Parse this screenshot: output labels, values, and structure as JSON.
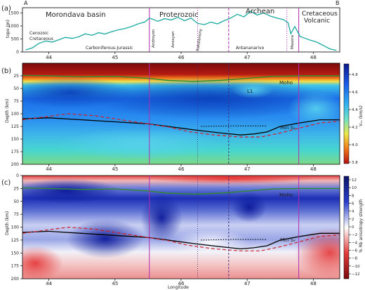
{
  "chart_data": [
    {
      "type": "line",
      "panel_label": "(a)",
      "corner_left": "A",
      "corner_right": "B",
      "ylabel": "topo (m)",
      "xlim": [
        43.6,
        48.4
      ],
      "ylim": [
        0,
        1700
      ],
      "yticks": [
        0,
        500,
        1000,
        1500
      ],
      "xticks": [
        44,
        45,
        46,
        47,
        48
      ],
      "series": [
        {
          "color": "#1aa9a0",
          "x": [
            43.65,
            43.75,
            43.85,
            43.95,
            44.05,
            44.15,
            44.25,
            44.35,
            44.45,
            44.55,
            44.65,
            44.75,
            44.85,
            44.95,
            45.05,
            45.15,
            45.25,
            45.35,
            45.45,
            45.52,
            45.58,
            45.65,
            45.75,
            45.85,
            45.95,
            46.05,
            46.15,
            46.25,
            46.35,
            46.45,
            46.55,
            46.65,
            46.75,
            46.85,
            46.95,
            47.05,
            47.15,
            47.25,
            47.35,
            47.45,
            47.55,
            47.62,
            47.66,
            47.72,
            47.8,
            47.88,
            47.95,
            48.05,
            48.15,
            48.25,
            48.35
          ],
          "y": [
            80,
            160,
            330,
            420,
            380,
            470,
            560,
            520,
            580,
            700,
            640,
            740,
            690,
            780,
            850,
            900,
            980,
            1080,
            1150,
            1300,
            1250,
            1180,
            1280,
            1230,
            1330,
            1200,
            1300,
            1100,
            1050,
            1150,
            1080,
            1200,
            1300,
            1450,
            1350,
            1560,
            1420,
            1500,
            1380,
            1300,
            1240,
            1120,
            700,
            980,
            600,
            520,
            460,
            380,
            250,
            120,
            60
          ]
        }
      ],
      "vlines_solid": [
        45.52,
        47.78
      ],
      "vlines_dashed": [
        46.72
      ],
      "vlines_dotted": [
        46.25,
        47.6
      ],
      "region_labels": [
        {
          "text": "Morondava basin",
          "color": "#b02db0"
        },
        {
          "text": "Proterozoic",
          "color": "#b02db0"
        },
        {
          "text": "Archean",
          "color": "#b02db0"
        },
        {
          "text": "Cretaceous",
          "color": "#b02db0"
        },
        {
          "text": "Volcanic",
          "color": "#b02db0"
        }
      ],
      "annotations": [
        "Cenozoic",
        "Cretaceous",
        "Carboniferous-Jurassic",
        "Androyen",
        "Anosyan",
        "Itakalanony",
        "Antananarivo",
        "Masora"
      ]
    },
    {
      "type": "heatmap",
      "panel_label": "(b)",
      "ylabel": "Depth (km)",
      "xlim": [
        43.6,
        48.4
      ],
      "ylim": [
        200,
        0
      ],
      "yticks": [
        25,
        50,
        75,
        100,
        125,
        150,
        175,
        200
      ],
      "xticks": [
        44,
        45,
        46,
        47,
        48
      ],
      "colorbar": {
        "label": "Vₛᵥ (km/s)",
        "min": 3.8,
        "max": 4.8,
        "ticks": [
          "4.8",
          "4.6",
          "4.4",
          "4.2",
          "4.0",
          "3.8"
        ]
      },
      "labels": [
        "Moho",
        "L1",
        "Min Sᵥ"
      ],
      "moho": {
        "x": [
          43.6,
          44,
          44.5,
          45,
          45.5,
          45.8,
          46.2,
          46.6,
          47,
          47.4,
          47.8,
          48.4
        ],
        "y": [
          24,
          25,
          27,
          26,
          30,
          34,
          36,
          34,
          30,
          26,
          25,
          25
        ]
      },
      "min_sv_solid": {
        "x": [
          43.6,
          44,
          44.5,
          45,
          45.5,
          45.8,
          46.2,
          46.6,
          46.9,
          47.1,
          47.3,
          47.5,
          47.8,
          48.1,
          48.4
        ],
        "y": [
          110,
          108,
          112,
          116,
          120,
          125,
          132,
          138,
          142,
          140,
          136,
          125,
          118,
          112,
          112
        ]
      },
      "min_sv_dotted": {
        "x": [
          46.3,
          46.8,
          47.3
        ],
        "y": [
          125,
          124,
          124
        ]
      },
      "red_dashed": {
        "x": [
          43.6,
          44,
          44.3,
          44.7,
          45,
          45.4,
          45.8,
          46.1,
          46.5,
          46.9,
          47.2,
          47.5,
          47.8,
          48.1,
          48.4
        ],
        "y": [
          112,
          105,
          100,
          104,
          110,
          118,
          126,
          135,
          142,
          146,
          146,
          138,
          128,
          118,
          115
        ]
      }
    },
    {
      "type": "heatmap",
      "panel_label": "(c)",
      "ylabel": "Depth (km)",
      "xlabel": "Longitude",
      "xlim": [
        43.6,
        48.4
      ],
      "ylim": [
        200,
        0
      ],
      "yticks": [
        0,
        25,
        50,
        75,
        100,
        125,
        150,
        175,
        200
      ],
      "xticks": [
        44,
        45,
        46,
        47,
        48
      ],
      "colorbar": {
        "label": "% Rb anisotropy strength",
        "min": -12,
        "max": 12,
        "ticks": [
          "12",
          "10",
          "8",
          "6",
          "4",
          "2",
          "0",
          "−2",
          "−4",
          "−6",
          "−8",
          "−10",
          "−12"
        ]
      },
      "labels": [
        "Moho",
        "Min Sᵥ"
      ],
      "moho": {
        "x": [
          43.6,
          44,
          44.5,
          45,
          45.5,
          45.8,
          46.2,
          46.6,
          47,
          47.4,
          47.8,
          48.4
        ],
        "y": [
          24,
          25,
          27,
          26,
          30,
          34,
          36,
          34,
          30,
          26,
          25,
          25
        ]
      },
      "min_sv_solid": {
        "x": [
          43.6,
          44,
          44.5,
          45,
          45.5,
          45.8,
          46.2,
          46.6,
          46.9,
          47.1,
          47.3,
          47.5,
          47.8,
          48.1,
          48.4
        ],
        "y": [
          110,
          108,
          112,
          116,
          120,
          125,
          132,
          138,
          142,
          140,
          136,
          125,
          118,
          112,
          112
        ]
      },
      "min_sv_dotted": {
        "x": [
          46.3,
          46.8,
          47.3
        ],
        "y": [
          125,
          124,
          124
        ]
      },
      "red_dashed": {
        "x": [
          43.6,
          44,
          44.3,
          44.7,
          45,
          45.4,
          45.8,
          46.1,
          46.5,
          46.9,
          47.2,
          47.5,
          47.8,
          48.1,
          48.4
        ],
        "y": [
          112,
          105,
          100,
          104,
          110,
          118,
          126,
          135,
          142,
          146,
          146,
          138,
          128,
          118,
          115
        ]
      }
    }
  ]
}
